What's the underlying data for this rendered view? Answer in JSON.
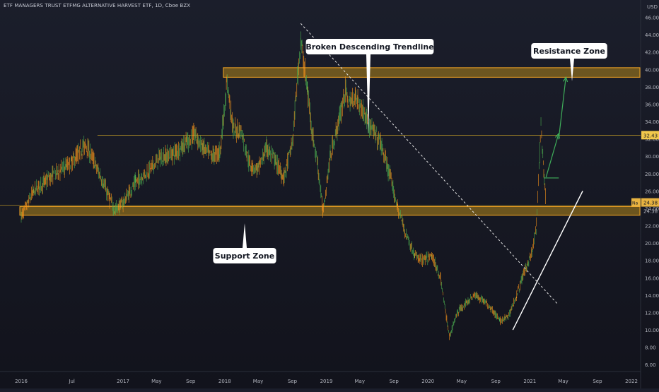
{
  "chart_title": "ETF MANAGERS TRUST ETFMG ALTERNATIVE HARVEST ETF, 1D, Cboe BZX",
  "currency": "USD",
  "colors": {
    "background_top": "#1b1e2b",
    "background_bottom": "#12131c",
    "candle_up": "#4caf50",
    "candle_down": "#f7931a",
    "zone_fill": "#8a6a1e",
    "zone_border": "#f5a623",
    "level_line": "#c9a227",
    "trendline_white": "#ffffff",
    "arrow_green": "#3fae5a",
    "last_price_bg": "#e8b341",
    "level_label_bg": "#f2c94c",
    "axis_text": "#b2b5be"
  },
  "callouts": {
    "descending": "Broken Descending Trendline",
    "resistance": "Resistance Zone",
    "support": "Support Zone"
  },
  "price_labels": {
    "level": "32.43",
    "last": "24.38",
    "last_sub": "24.38",
    "prefix": "Na"
  },
  "chart_data": {
    "type": "candlestick",
    "title": "ETF MANAGERS TRUST ETFMG ALTERNATIVE HARVEST ETF, 1D, Cboe BZX",
    "ylabel": "USD",
    "ylim": [
      5.2,
      48.0
    ],
    "xlim": [
      "2016-01-01",
      "2022-01-01"
    ],
    "y_ticks": [
      "6.00",
      "8.00",
      "10.00",
      "12.00",
      "14.00",
      "16.00",
      "18.00",
      "20.00",
      "22.00",
      "24.00",
      "26.00",
      "28.00",
      "30.00",
      "32.00",
      "34.00",
      "36.00",
      "38.00",
      "40.00",
      "42.00",
      "44.00",
      "46.00"
    ],
    "x_ticks": [
      {
        "label": "2016",
        "date": "2016-01-01"
      },
      {
        "label": "Jul",
        "date": "2016-07-01"
      },
      {
        "label": "2017",
        "date": "2017-01-01"
      },
      {
        "label": "May",
        "date": "2017-05-01"
      },
      {
        "label": "Sep",
        "date": "2017-09-01"
      },
      {
        "label": "2018",
        "date": "2018-01-01"
      },
      {
        "label": "May",
        "date": "2018-05-01"
      },
      {
        "label": "Sep",
        "date": "2018-09-01"
      },
      {
        "label": "2019",
        "date": "2019-01-01"
      },
      {
        "label": "May",
        "date": "2019-05-01"
      },
      {
        "label": "Sep",
        "date": "2019-09-01"
      },
      {
        "label": "2020",
        "date": "2020-01-01"
      },
      {
        "label": "May",
        "date": "2020-05-01"
      },
      {
        "label": "Sep",
        "date": "2020-09-01"
      },
      {
        "label": "2021",
        "date": "2021-01-01"
      },
      {
        "label": "May",
        "date": "2021-05-01"
      },
      {
        "label": "Sep",
        "date": "2021-09-01"
      },
      {
        "label": "2022",
        "date": "2022-01-01"
      }
    ],
    "price_path": [
      [
        "2016-01-01",
        23.0
      ],
      [
        "2016-02-15",
        26.0
      ],
      [
        "2016-04-01",
        27.2
      ],
      [
        "2016-05-15",
        28.3
      ],
      [
        "2016-07-01",
        29.3
      ],
      [
        "2016-08-20",
        31.4
      ],
      [
        "2016-10-01",
        28.5
      ],
      [
        "2016-11-15",
        25.0
      ],
      [
        "2016-12-01",
        23.8
      ],
      [
        "2017-01-01",
        24.6
      ],
      [
        "2017-02-15",
        27.0
      ],
      [
        "2017-04-01",
        28.3
      ],
      [
        "2017-05-15",
        29.8
      ],
      [
        "2017-07-01",
        30.3
      ],
      [
        "2017-08-15",
        31.5
      ],
      [
        "2017-09-15",
        32.5
      ],
      [
        "2017-10-15",
        31.0
      ],
      [
        "2017-11-15",
        30.0
      ],
      [
        "2017-12-15",
        30.5
      ],
      [
        "2018-01-10",
        38.5
      ],
      [
        "2018-02-01",
        33.0
      ],
      [
        "2018-03-01",
        33.0
      ],
      [
        "2018-04-01",
        29.0
      ],
      [
        "2018-05-01",
        28.5
      ],
      [
        "2018-06-01",
        31.0
      ],
      [
        "2018-07-01",
        29.5
      ],
      [
        "2018-08-01",
        27.5
      ],
      [
        "2018-09-01",
        31.5
      ],
      [
        "2018-10-01",
        43.5
      ],
      [
        "2018-10-25",
        37.5
      ],
      [
        "2018-11-15",
        32.0
      ],
      [
        "2018-12-01",
        29.0
      ],
      [
        "2018-12-20",
        23.6
      ],
      [
        "2019-01-15",
        30.0
      ],
      [
        "2019-02-15",
        34.0
      ],
      [
        "2019-03-10",
        37.5
      ],
      [
        "2019-03-25",
        36.0
      ],
      [
        "2019-04-15",
        37.0
      ],
      [
        "2019-05-15",
        35.0
      ],
      [
        "2019-06-15",
        33.0
      ],
      [
        "2019-07-15",
        31.5
      ],
      [
        "2019-08-15",
        28.0
      ],
      [
        "2019-09-15",
        24.0
      ],
      [
        "2019-10-15",
        21.0
      ],
      [
        "2019-11-15",
        18.5
      ],
      [
        "2019-12-15",
        18.0
      ],
      [
        "2020-01-15",
        18.5
      ],
      [
        "2020-02-15",
        16.0
      ],
      [
        "2020-03-18",
        9.2
      ],
      [
        "2020-04-15",
        12.0
      ],
      [
        "2020-05-15",
        13.0
      ],
      [
        "2020-06-15",
        14.0
      ],
      [
        "2020-07-15",
        13.5
      ],
      [
        "2020-08-15",
        12.5
      ],
      [
        "2020-09-15",
        11.0
      ],
      [
        "2020-10-15",
        11.5
      ],
      [
        "2020-11-15",
        14.0
      ],
      [
        "2020-12-10",
        16.5
      ],
      [
        "2021-01-10",
        19.0
      ],
      [
        "2021-01-25",
        22.0
      ],
      [
        "2021-02-10",
        33.8
      ],
      [
        "2021-02-20",
        28.0
      ],
      [
        "2021-03-01",
        24.4
      ]
    ],
    "zones": [
      {
        "name": "resistance",
        "from": 39.1,
        "to": 40.2,
        "start": "2018-01-01",
        "end": "2022-01-01"
      },
      {
        "name": "support",
        "from": 23.2,
        "to": 24.2,
        "start": "2016-01-01",
        "end": "2022-01-01"
      }
    ],
    "levels": [
      32.43,
      24.38
    ],
    "trendlines": [
      {
        "name": "descending",
        "from": [
          "2018-10-01",
          45.3
        ],
        "to": [
          "2021-04-10",
          13.0
        ],
        "style": "dashed"
      },
      {
        "name": "ascending",
        "from": [
          "2020-11-01",
          10.0
        ],
        "to": [
          "2021-07-10",
          26.0
        ],
        "style": "solid"
      }
    ],
    "projection": {
      "base": [
        "2021-02-20",
        27.5
      ],
      "base_end": [
        "2021-04-15",
        27.5
      ],
      "target1": [
        "2021-05-10",
        32.6
      ],
      "target2": [
        "2021-06-10",
        39.1
      ]
    }
  }
}
